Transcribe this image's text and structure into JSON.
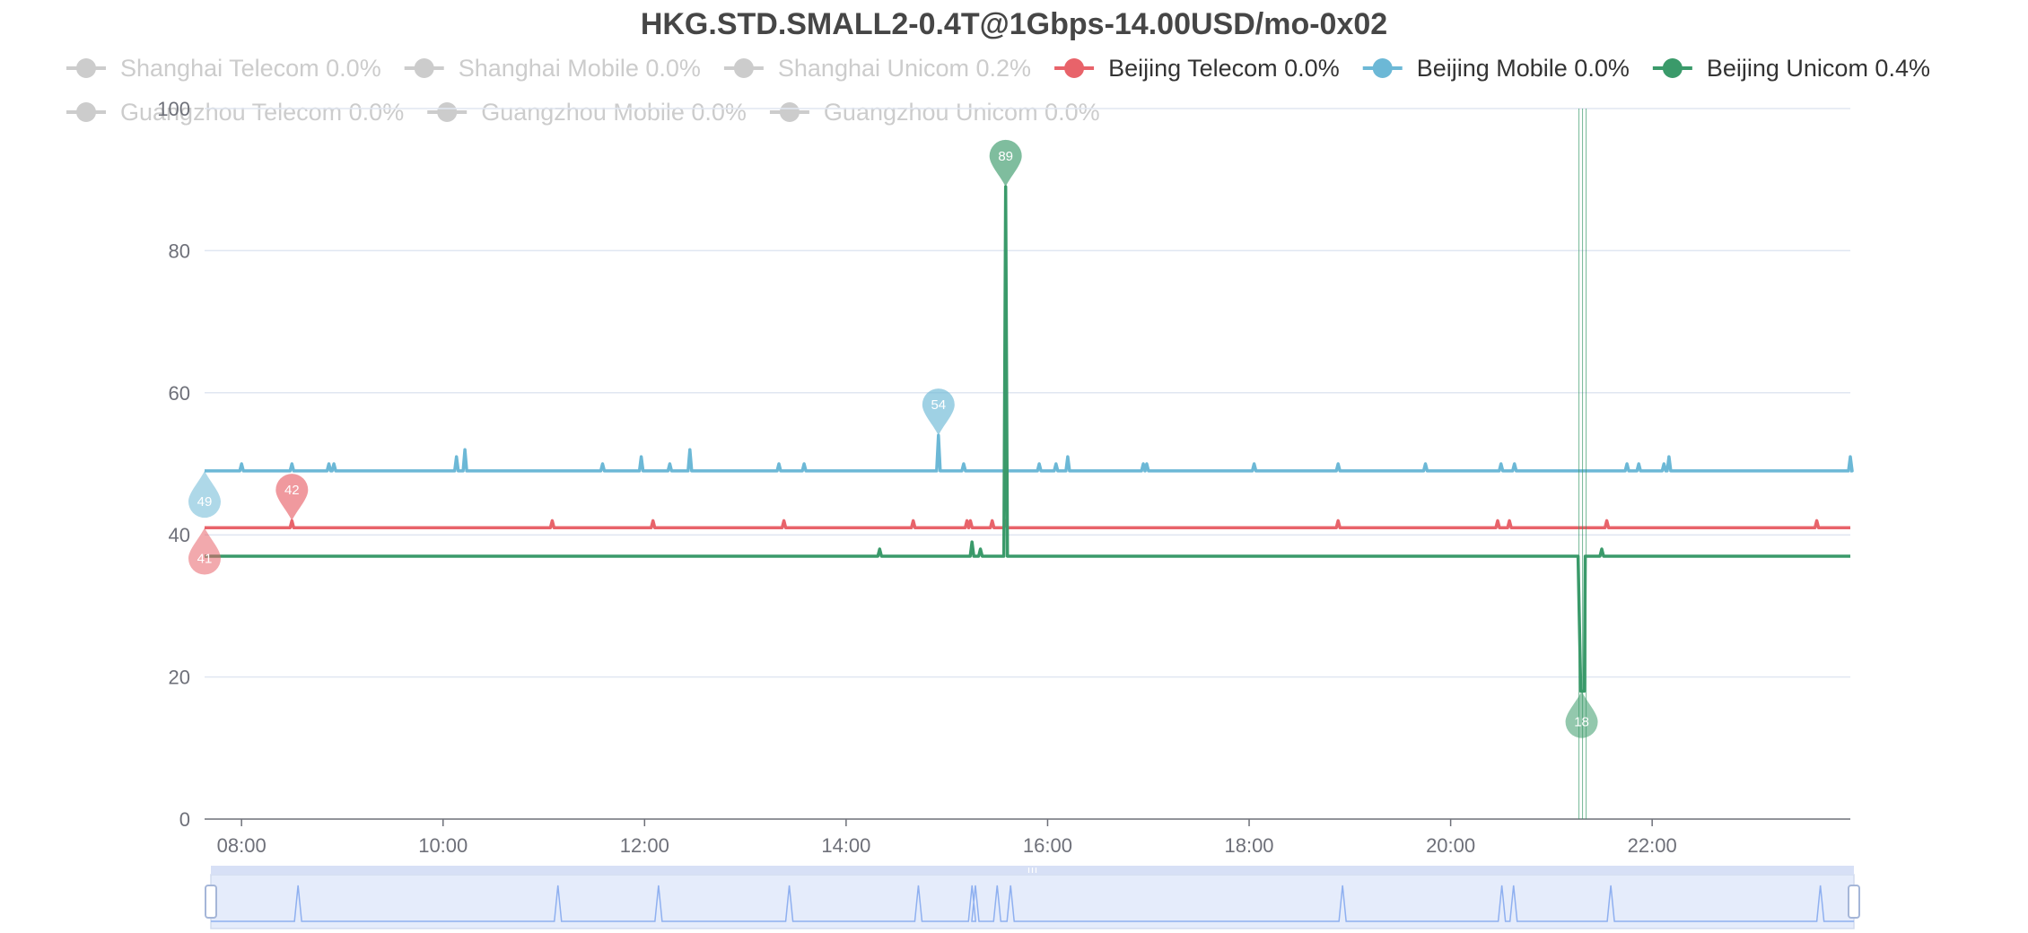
{
  "title": "HKG.STD.SMALL2-0.4T@1Gbps-14.00USD/mo-0x02",
  "legend": [
    {
      "label": "Shanghai Telecom 0.0%",
      "active": false,
      "color": "#cccccc"
    },
    {
      "label": "Shanghai Mobile 0.0%",
      "active": false,
      "color": "#cccccc"
    },
    {
      "label": "Shanghai Unicom 0.2%",
      "active": false,
      "color": "#cccccc"
    },
    {
      "label": "Beijing Telecom 0.0%",
      "active": true,
      "color": "#e8636a"
    },
    {
      "label": "Beijing Mobile 0.0%",
      "active": true,
      "color": "#6cb8d6"
    },
    {
      "label": "Beijing Unicom 0.4%",
      "active": true,
      "color": "#3a9a6a"
    },
    {
      "label": "Guangzhou Telecom 0.0%",
      "active": false,
      "color": "#cccccc"
    },
    {
      "label": "Guangzhou Mobile 0.0%",
      "active": false,
      "color": "#cccccc"
    },
    {
      "label": "Guangzhou Unicom 0.0%",
      "active": false,
      "color": "#cccccc"
    }
  ],
  "chart_data": {
    "type": "line",
    "title": "HKG.STD.SMALL2-0.4T@1Gbps-14.00USD/mo-0x02",
    "xlabel": "",
    "ylabel": "",
    "xlim": [
      "07:38",
      "23:58"
    ],
    "ylim": [
      0,
      100
    ],
    "x_ticks": [
      "08:00",
      "10:00",
      "12:00",
      "14:00",
      "16:00",
      "18:00",
      "20:00",
      "22:00"
    ],
    "y_ticks": [
      0,
      20,
      40,
      60,
      80,
      100
    ],
    "grid": true,
    "legend_position": "top",
    "series": [
      {
        "name": "Beijing Telecom",
        "color": "#e8636a",
        "baseline": 41,
        "spikes": [
          [
            "08:30",
            42
          ],
          [
            "11:05",
            42
          ],
          [
            "12:05",
            42
          ],
          [
            "13:23",
            42
          ],
          [
            "14:40",
            42
          ],
          [
            "15:12",
            42
          ],
          [
            "15:14",
            42
          ],
          [
            "15:27",
            42
          ],
          [
            "15:35",
            42
          ],
          [
            "21:33",
            42
          ],
          [
            "18:53",
            42
          ],
          [
            "20:28",
            42
          ],
          [
            "20:35",
            42
          ],
          [
            "23:38",
            42
          ]
        ],
        "markers": [
          {
            "label": "41",
            "x": "07:38",
            "value": 41,
            "type": "min"
          },
          {
            "label": "42",
            "x": "08:30",
            "value": 42,
            "type": "max"
          }
        ]
      },
      {
        "name": "Beijing Mobile",
        "color": "#6cb8d6",
        "baseline": 49,
        "spikes": [
          [
            "08:00",
            50
          ],
          [
            "08:30",
            50
          ],
          [
            "08:52",
            50
          ],
          [
            "08:55",
            50
          ],
          [
            "10:08",
            51
          ],
          [
            "10:13",
            52
          ],
          [
            "11:35",
            50
          ],
          [
            "11:58",
            51
          ],
          [
            "12:15",
            50
          ],
          [
            "12:27",
            52
          ],
          [
            "13:20",
            50
          ],
          [
            "13:35",
            50
          ],
          [
            "14:55",
            54
          ],
          [
            "15:10",
            50
          ],
          [
            "15:55",
            50
          ],
          [
            "16:05",
            50
          ],
          [
            "16:12",
            51
          ],
          [
            "16:57",
            50
          ],
          [
            "16:59",
            50
          ],
          [
            "18:03",
            50
          ],
          [
            "18:53",
            50
          ],
          [
            "19:45",
            50
          ],
          [
            "20:30",
            50
          ],
          [
            "20:38",
            50
          ],
          [
            "21:45",
            50
          ],
          [
            "21:52",
            50
          ],
          [
            "22:07",
            50
          ],
          [
            "22:10",
            51
          ],
          [
            "23:58",
            51
          ]
        ],
        "markers": [
          {
            "label": "49",
            "x": "07:38",
            "value": 49,
            "type": "min"
          },
          {
            "label": "54",
            "x": "14:55",
            "value": 54,
            "type": "max"
          }
        ]
      },
      {
        "name": "Beijing Unicom",
        "color": "#3a9a6a",
        "baseline": 37,
        "spikes": [
          [
            "14:20",
            38
          ],
          [
            "15:15",
            39
          ],
          [
            "15:20",
            38
          ],
          [
            "15:35",
            89
          ],
          [
            "21:30",
            38
          ]
        ],
        "dips": [
          [
            "21:18",
            18
          ]
        ],
        "markers": [
          {
            "label": "89",
            "x": "15:35",
            "value": 89,
            "type": "max"
          },
          {
            "label": "18",
            "x": "21:18",
            "value": 18,
            "type": "min"
          }
        ]
      }
    ]
  }
}
